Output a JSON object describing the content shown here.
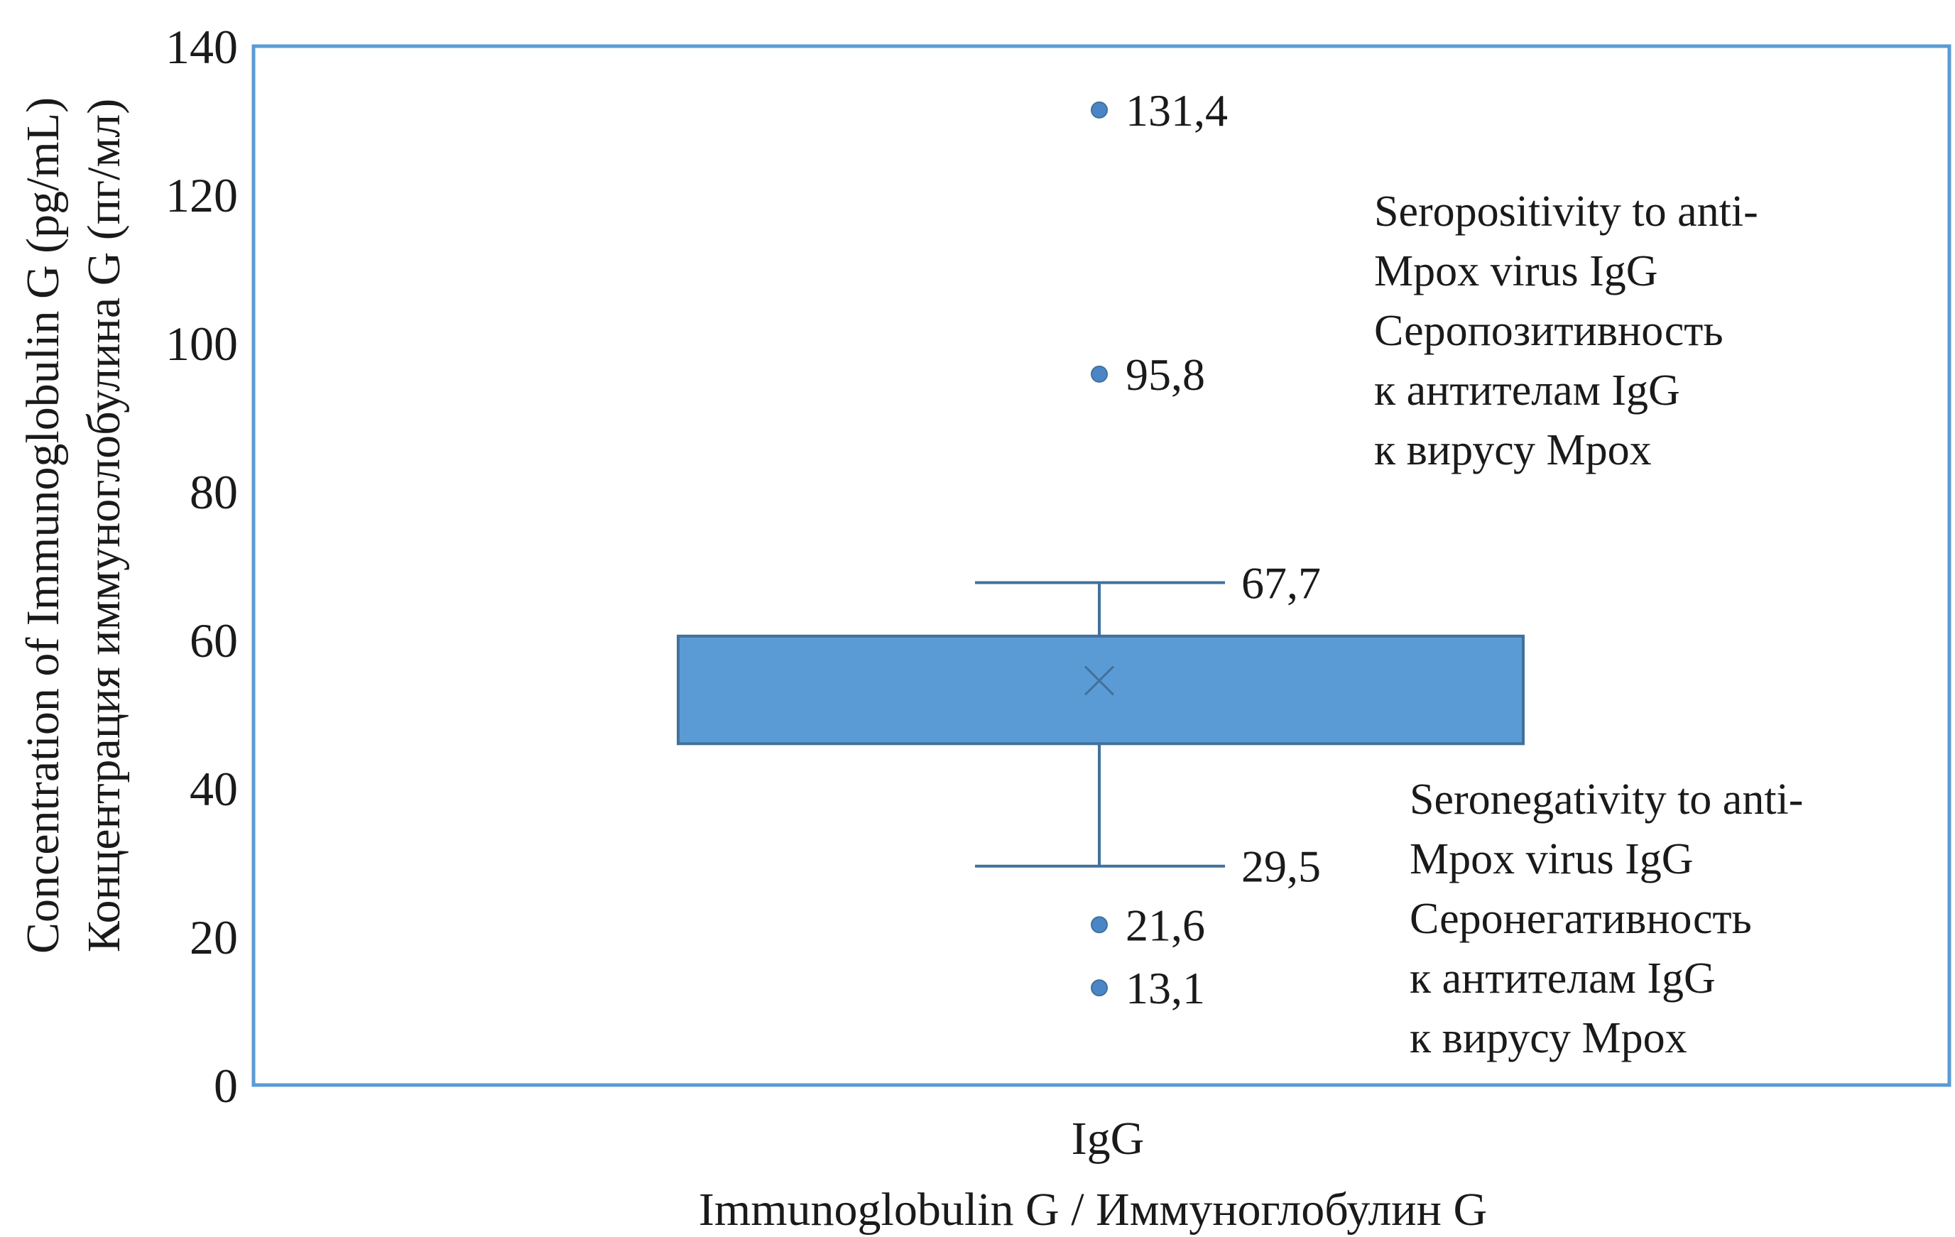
{
  "chart_data": {
    "type": "box",
    "y_axis": {
      "label_lines": [
        "Concentration of Immunoglobulin G (pg/mL)",
        "Концентрация иммуноглобулина G (пг/мл)"
      ],
      "ylim": [
        0,
        140
      ],
      "ticks": [
        0,
        20,
        40,
        60,
        80,
        100,
        120,
        140
      ]
    },
    "x_axis": {
      "category": "IgG",
      "label": "Immunoglobulin G / Иммуноглобулин G"
    },
    "box": {
      "whisker_high": 67.7,
      "q3": 60.5,
      "mean": 54.5,
      "q1": 46.0,
      "whisker_low": 29.5,
      "whisker_high_label": "67,7",
      "whisker_low_label": "29,5"
    },
    "outliers": [
      {
        "value": 131.4,
        "label": "131,4"
      },
      {
        "value": 95.8,
        "label": "95,8"
      },
      {
        "value": 21.6,
        "label": "21,6"
      },
      {
        "value": 13.1,
        "label": "13,1"
      }
    ],
    "annotations": {
      "seropositive": [
        "Seropositivity to anti-",
        "Mpox virus IgG",
        "Серопозитивность",
        "к антителам IgG",
        "к вирусу Mpox"
      ],
      "seronegative": [
        "Seronegativity to anti-",
        "Mpox virus IgG",
        "Серонегативность",
        "к антителам IgG",
        "к вирусу Mpox"
      ]
    },
    "colors": {
      "box_fill": "#5b9bd5",
      "box_stroke": "#41719c",
      "frame": "#5b9bd5",
      "marker": "#4a86c5"
    }
  }
}
